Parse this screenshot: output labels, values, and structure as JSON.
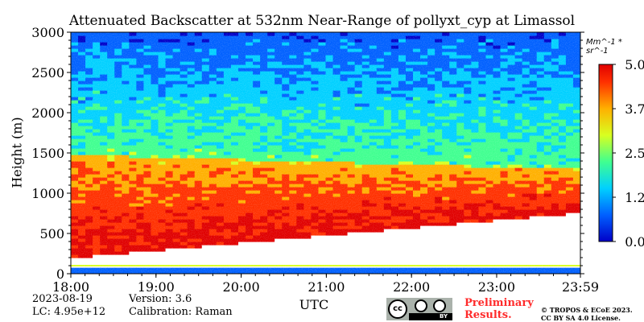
{
  "chart_data": {
    "type": "heatmap",
    "title": "Attenuated Backscatter at 532nm Near-Range of pollyxt_cyp at Limassol",
    "ylabel": "Height (m)",
    "xlabel": "UTC",
    "x_ticks": [
      "18:00",
      "19:00",
      "20:00",
      "21:00",
      "22:00",
      "23:00",
      "23:59"
    ],
    "y_ticks": [
      "0",
      "500",
      "1000",
      "1500",
      "2000",
      "2500",
      "3000"
    ],
    "xlim": [
      "18:00",
      "23:59"
    ],
    "ylim": [
      0,
      3000
    ],
    "colorbar": {
      "unit": "Mm^-1 * sr^-1",
      "ticks": [
        "0.00",
        "1.25",
        "2.50",
        "3.75",
        "5.00"
      ],
      "range": [
        0,
        5
      ],
      "colors": [
        "#0000c8",
        "#0060ff",
        "#00d0ff",
        "#40ff90",
        "#d8ff20",
        "#ffb000",
        "#ff3000",
        "#e00000"
      ]
    },
    "layers": [
      {
        "name": "near-surface",
        "height_m": [
          0,
          100
        ],
        "value": 0.5
      },
      {
        "name": "aerosol layer",
        "top_m_start": 1480,
        "top_m_end": 1300,
        "base_m_start": 200,
        "base_m_end": 750,
        "value_range": [
          3.5,
          5.0
        ]
      },
      {
        "name": "free troposphere",
        "height_m": [
          1500,
          3000
        ],
        "value_range": [
          0.5,
          2.5
        ]
      }
    ]
  },
  "meta": {
    "date": "2023-08-19",
    "lc": "LC: 4.95e+12",
    "version": "Version: 3.6",
    "calibration": "Calibration: Raman"
  },
  "license": {
    "preliminary_line1": "Preliminary",
    "preliminary_line2": "Results.",
    "copyright_line1": "© TROPOS & ECoE 2023.",
    "copyright_line2": "CC BY SA 4.0 License.",
    "badge_cc": "cc",
    "badge_by": "BY",
    "badge_sa": "SA"
  }
}
